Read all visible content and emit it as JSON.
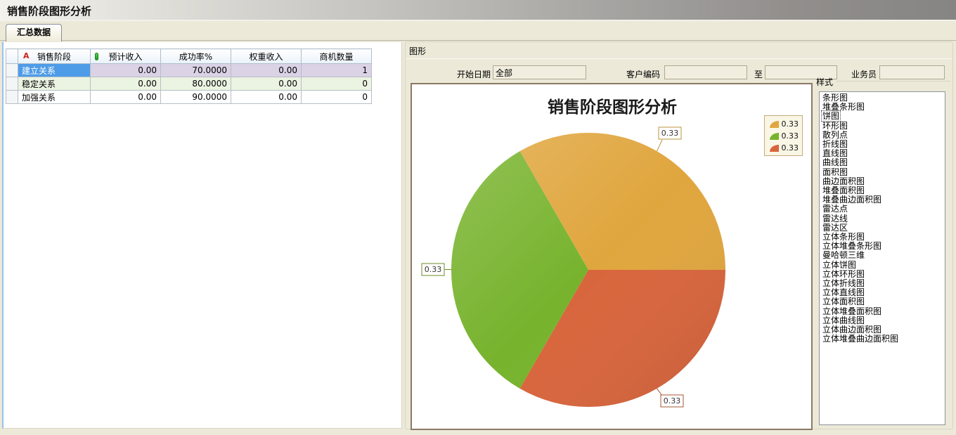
{
  "window": {
    "title": "销售阶段图形分析"
  },
  "tabs": [
    {
      "label": "汇总数据",
      "active": true
    }
  ],
  "table": {
    "columns": [
      "销售阶段",
      "预计收入",
      "成功率%",
      "权重收入",
      "商机数量"
    ],
    "header_icons": [
      "sort-a-icon",
      "green-pill-icon"
    ],
    "rows": [
      {
        "stage": "建立关系",
        "expected": "0.00",
        "rate": "70.0000",
        "weighted": "0.00",
        "count": "1",
        "selected": true
      },
      {
        "stage": "稳定关系",
        "expected": "0.00",
        "rate": "80.0000",
        "weighted": "0.00",
        "count": "0",
        "selected": false
      },
      {
        "stage": "加强关系",
        "expected": "0.00",
        "rate": "90.0000",
        "weighted": "0.00",
        "count": "0",
        "selected": false
      }
    ]
  },
  "graph_panel": {
    "title": "图形",
    "filters": {
      "start_date_label": "开始日期",
      "start_date_value": "全部",
      "customer_code_label": "客户编码",
      "customer_code_value": "",
      "to_label": "至",
      "to_value": "",
      "salesman_label": "业务员",
      "salesman_value": ""
    },
    "style_panel": {
      "label": "样式",
      "selected": "饼图",
      "items": [
        "条形图",
        "堆叠条形图",
        "饼图",
        "环形图",
        "散列点",
        "折线图",
        "直线图",
        "曲线图",
        "面积图",
        "曲边面积图",
        "堆叠面积图",
        "堆叠曲边面积图",
        "雷达点",
        "雷达线",
        "雷达区",
        "立体条形图",
        "立体堆叠条形图",
        "曼哈顿三维",
        "立体饼图",
        "立体环形图",
        "立体折线图",
        "立体直线图",
        "立体面积图",
        "立体堆叠面积图",
        "立体曲线图",
        "立体曲边面积图",
        "立体堆叠曲边面积图"
      ]
    }
  },
  "chart_data": {
    "type": "pie",
    "title": "销售阶段图形分析",
    "slices": [
      {
        "value": 0.33,
        "label": "0.33",
        "color": "#E0A63E"
      },
      {
        "value": 0.33,
        "label": "0.33",
        "color": "#77B32D"
      },
      {
        "value": 0.33,
        "label": "0.33",
        "color": "#D8653C"
      }
    ],
    "legend": {
      "position": "top-right",
      "entries": [
        "0.33",
        "0.33",
        "0.33"
      ]
    }
  },
  "colors": {
    "selection_blue": "#4E9CE8",
    "selected_row_lavender": "#DBD2E6",
    "alt_row_green": "#EBF3E2",
    "panel_beige": "#ECE9D8",
    "chart_border_brown": "#8C7964",
    "pie_gold": "#E0A63E",
    "pie_green": "#77B32D",
    "pie_red": "#D8653C"
  }
}
